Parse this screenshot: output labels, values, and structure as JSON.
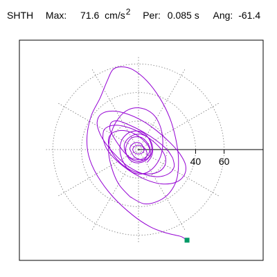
{
  "header": {
    "station": "SHTH",
    "max_label": "Max:",
    "max_value": "71.6",
    "max_unit": "cm/s",
    "max_unit_exp": "2",
    "period_label": "Per:",
    "period_value": "0.085 s",
    "angle_label": "Ang:",
    "angle_value": "-61.4"
  },
  "colors": {
    "trace": "#9400d3",
    "grid": "#777777",
    "axis": "#000000",
    "end_marker": "#009966"
  },
  "chart_data": {
    "type": "scatter",
    "title": "SHTH",
    "units": "cm/s2",
    "max_amplitude": 71.6,
    "period_s": 0.085,
    "angle_deg": -61.4,
    "xlim": [
      -71,
      71
    ],
    "ylim": [
      -71,
      71
    ],
    "polar_grid": true,
    "rings": [
      20,
      40,
      60
    ],
    "spokes_deg": [
      0,
      30,
      60,
      90,
      120,
      150,
      180,
      210,
      240,
      270,
      300,
      330
    ],
    "tick_labels": [
      "40",
      "60"
    ],
    "tick_values": [
      40,
      60
    ],
    "end_point": [
      34,
      -63.5
    ],
    "orbit_points": [
      [
        34,
        -63.5
      ],
      [
        30,
        -61
      ],
      [
        26,
        -60
      ],
      [
        18,
        -58
      ],
      [
        8,
        -54
      ],
      [
        -4,
        -46
      ],
      [
        -18,
        -33
      ],
      [
        -29,
        -18
      ],
      [
        -35,
        -4
      ],
      [
        -36,
        10
      ],
      [
        -33,
        24
      ],
      [
        -27,
        36
      ],
      [
        -22,
        48
      ],
      [
        -18,
        56
      ],
      [
        -12,
        58
      ],
      [
        -4,
        56
      ],
      [
        6,
        48
      ],
      [
        15,
        36
      ],
      [
        22,
        22
      ],
      [
        26,
        8
      ],
      [
        28,
        -6
      ],
      [
        27,
        -20
      ],
      [
        22,
        -30
      ],
      [
        14,
        -36
      ],
      [
        4,
        -38
      ],
      [
        -6,
        -33
      ],
      [
        -14,
        -24
      ],
      [
        -19,
        -12
      ],
      [
        -21,
        0
      ],
      [
        -19,
        12
      ],
      [
        -14,
        22
      ],
      [
        -7,
        28
      ],
      [
        2,
        29
      ],
      [
        10,
        25
      ],
      [
        15,
        17
      ],
      [
        17,
        7
      ],
      [
        16,
        -3
      ],
      [
        12,
        -11
      ],
      [
        6,
        -16
      ],
      [
        -1,
        -17
      ],
      [
        -7,
        -14
      ],
      [
        -11,
        -8
      ],
      [
        -13,
        -1
      ],
      [
        -12,
        6
      ],
      [
        -8,
        11
      ],
      [
        -3,
        13
      ],
      [
        3,
        12
      ],
      [
        7,
        8
      ],
      [
        9,
        3
      ],
      [
        9,
        -3
      ],
      [
        6,
        -7
      ],
      [
        2,
        -9
      ],
      [
        -3,
        -9
      ],
      [
        -7,
        -6
      ],
      [
        -9,
        -1
      ],
      [
        -8,
        4
      ],
      [
        -5,
        8
      ],
      [
        -1,
        9
      ],
      [
        3,
        8
      ],
      [
        6,
        5
      ],
      [
        8,
        1
      ],
      [
        7,
        -3
      ],
      [
        4,
        -6
      ],
      [
        0,
        -7
      ],
      [
        -5,
        -6
      ],
      [
        -9,
        -3
      ],
      [
        -13,
        2
      ],
      [
        -17,
        8
      ],
      [
        -20,
        14
      ],
      [
        -19,
        19
      ],
      [
        -14,
        20
      ],
      [
        -6,
        17
      ],
      [
        4,
        12
      ],
      [
        13,
        6
      ],
      [
        20,
        0
      ],
      [
        24,
        -6
      ],
      [
        25,
        -12
      ],
      [
        21,
        -17
      ],
      [
        13,
        -19
      ],
      [
        3,
        -17
      ],
      [
        -7,
        -12
      ],
      [
        -15,
        -5
      ],
      [
        -22,
        3
      ],
      [
        -27,
        11
      ],
      [
        -29,
        19
      ],
      [
        -26,
        25
      ],
      [
        -18,
        27
      ],
      [
        -8,
        25
      ],
      [
        3,
        20
      ],
      [
        13,
        13
      ],
      [
        22,
        5
      ],
      [
        29,
        -3
      ],
      [
        33,
        -11
      ],
      [
        32,
        -18
      ],
      [
        26,
        -23
      ],
      [
        16,
        -24
      ],
      [
        5,
        -21
      ],
      [
        -6,
        -15
      ],
      [
        -15,
        -8
      ],
      [
        -22,
        0
      ],
      [
        -25,
        8
      ],
      [
        -24,
        14
      ],
      [
        -18,
        17
      ],
      [
        -9,
        16
      ],
      [
        1,
        12
      ],
      [
        10,
        6
      ],
      [
        16,
        0
      ],
      [
        19,
        -6
      ],
      [
        18,
        -12
      ],
      [
        13,
        -16
      ],
      [
        5,
        -17
      ],
      [
        -4,
        -15
      ],
      [
        -12,
        -10
      ],
      [
        -18,
        -3
      ],
      [
        -21,
        4
      ],
      [
        -20,
        10
      ],
      [
        -15,
        13
      ],
      [
        -8,
        13
      ],
      [
        -1,
        10
      ],
      [
        5,
        5
      ],
      [
        8,
        0
      ],
      [
        8,
        -4
      ],
      [
        5,
        -7
      ],
      [
        1,
        -7
      ],
      [
        -3,
        -5
      ],
      [
        -5,
        -2
      ],
      [
        -6,
        1
      ],
      [
        -4,
        4
      ],
      [
        -1,
        5
      ],
      [
        2,
        4
      ],
      [
        3,
        2
      ],
      [
        4,
        0
      ],
      [
        3,
        -2
      ],
      [
        1,
        -3
      ],
      [
        -1,
        -3
      ],
      [
        -3,
        -2
      ],
      [
        -4,
        0
      ],
      [
        -3,
        2
      ],
      [
        0,
        3
      ],
      [
        3,
        2
      ],
      [
        5,
        0
      ],
      [
        6,
        -3
      ],
      [
        5,
        -6
      ],
      [
        2,
        -8
      ],
      [
        -2,
        -8
      ],
      [
        -6,
        -6
      ],
      [
        -9,
        -2
      ],
      [
        -10,
        3
      ],
      [
        -8,
        7
      ],
      [
        -4,
        10
      ],
      [
        1,
        11
      ],
      [
        6,
        9
      ],
      [
        9,
        5
      ],
      [
        10,
        0
      ],
      [
        9,
        -5
      ],
      [
        6,
        -9
      ]
    ]
  }
}
